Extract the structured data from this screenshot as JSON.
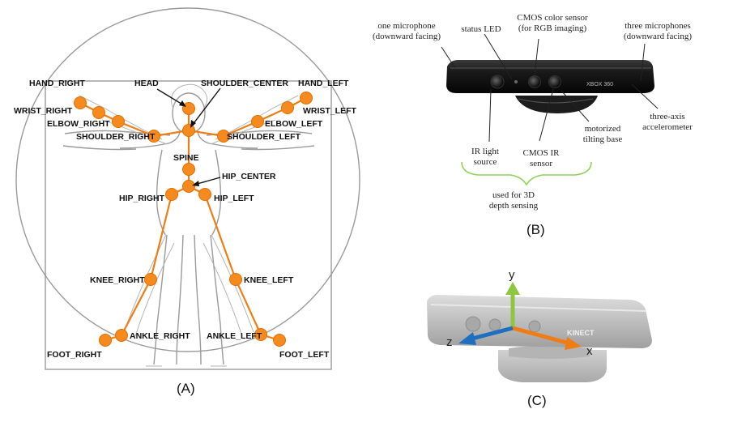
{
  "panel_a": {
    "caption": "(A)",
    "joints": {
      "head": "HEAD",
      "shoulder_center": "SHOULDER_CENTER",
      "hand_right": "HAND_RIGHT",
      "hand_left": "HAND_LEFT",
      "wrist_right": "WRIST_RIGHT",
      "wrist_left": "WRIST_LEFT",
      "elbow_right": "ELBOW_RIGHT",
      "elbow_left": "ELBOW_LEFT",
      "shoulder_right": "SHOULDER_RIGHT",
      "shoulder_left": "SHOULDER_LEFT",
      "spine": "SPINE",
      "hip_center": "HIP_CENTER",
      "hip_right": "HIP_RIGHT",
      "hip_left": "HIP_LEFT",
      "knee_right": "KNEE_RIGHT",
      "knee_left": "KNEE_LEFT",
      "ankle_right": "ANKLE_RIGHT",
      "ankle_left": "ANKLE_LEFT",
      "foot_right": "FOOT_RIGHT",
      "foot_left": "FOOT_LEFT"
    }
  },
  "panel_b": {
    "caption": "(B)",
    "logo": "XBOX 360",
    "labels": {
      "one_mic_1": "one microphone",
      "one_mic_2": "(downward facing)",
      "status_led": "status LED",
      "cmos_color_1": "CMOS color sensor",
      "cmos_color_2": "(for RGB imaging)",
      "three_mic_1": "three microphones",
      "three_mic_2": "(downward facing)",
      "accel_1": "three-axis",
      "accel_2": "accelerometer",
      "tilt_1": "motorized",
      "tilt_2": "tilting base",
      "ir_source_1": "IR light",
      "ir_source_2": "source",
      "cmos_ir_1": "CMOS IR",
      "cmos_ir_2": "sensor",
      "depth_1": "used for 3D",
      "depth_2": "depth sensing"
    }
  },
  "panel_c": {
    "caption": "(C)",
    "logo": "KINECT",
    "axes": {
      "x": "x",
      "y": "y",
      "z": "z"
    },
    "colors": {
      "x": "#f07d14",
      "y": "#8dc63f",
      "z": "#1e6fc0"
    }
  },
  "colors": {
    "joint": "#f58a1f",
    "bone": "#f07d14",
    "bracket": "#8fd15e"
  }
}
